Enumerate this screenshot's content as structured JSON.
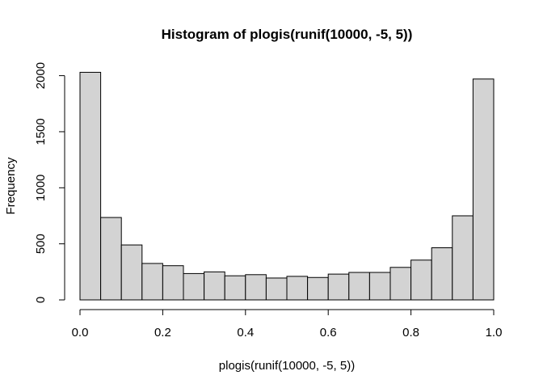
{
  "chart_data": {
    "type": "bar",
    "title": "Histogram of plogis(runif(10000, -5, 5))",
    "xlabel": "plogis(runif(10000, -5, 5))",
    "ylabel": "Frequency",
    "bin_edges": [
      0.0,
      0.05,
      0.1,
      0.15,
      0.2,
      0.25,
      0.3,
      0.35,
      0.4,
      0.45,
      0.5,
      0.55,
      0.6,
      0.65,
      0.7,
      0.75,
      0.8,
      0.85,
      0.9,
      0.95,
      1.0
    ],
    "values": [
      2030,
      735,
      490,
      325,
      305,
      235,
      250,
      215,
      225,
      195,
      210,
      200,
      230,
      245,
      245,
      290,
      355,
      465,
      750,
      1970
    ],
    "xlim": [
      0,
      1
    ],
    "ylim": [
      0,
      2050
    ],
    "x_ticks": [
      0.0,
      0.2,
      0.4,
      0.6,
      0.8,
      1.0
    ],
    "x_tick_labels": [
      "0.0",
      "0.2",
      "0.4",
      "0.6",
      "0.8",
      "1.0"
    ],
    "y_ticks": [
      0,
      500,
      1000,
      1500,
      2000
    ],
    "y_tick_labels": [
      "0",
      "500",
      "1000",
      "1500",
      "2000"
    ],
    "bar_fill": "#d3d3d3",
    "bar_stroke": "#000000",
    "grid": false,
    "legend": "none"
  }
}
